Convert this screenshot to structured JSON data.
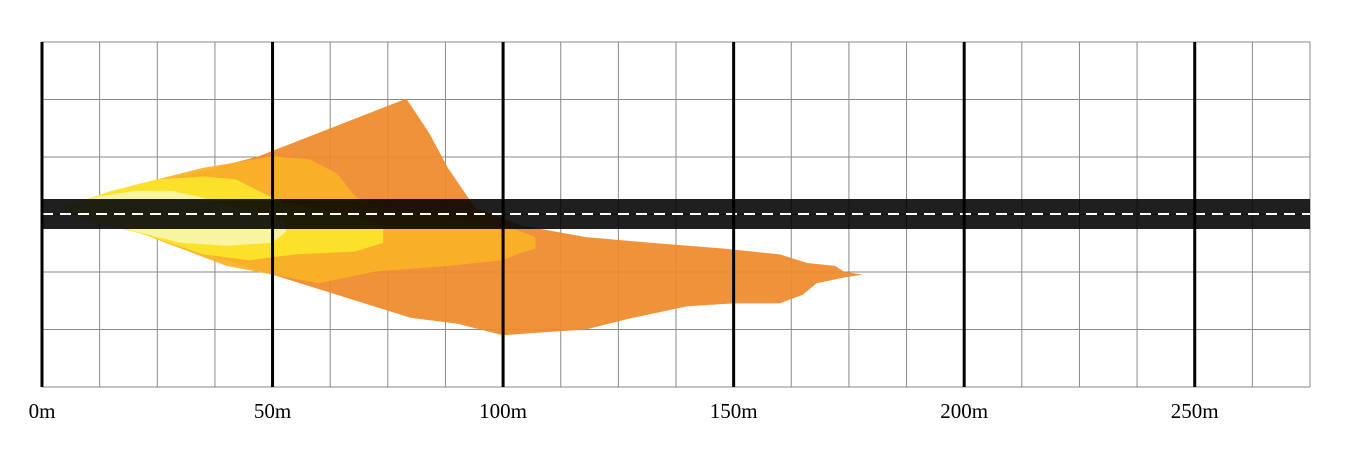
{
  "chart_data": {
    "type": "diagram",
    "x_axis": {
      "unit": "m",
      "min": 0,
      "max": 275,
      "minor_step": 12.5,
      "major_step": 50,
      "ticks": [
        {
          "value": 0,
          "label": "0m"
        },
        {
          "value": 50,
          "label": "50m"
        },
        {
          "value": 100,
          "label": "100m"
        },
        {
          "value": 150,
          "label": "150m"
        },
        {
          "value": 200,
          "label": "200m"
        },
        {
          "value": 250,
          "label": "250m"
        }
      ]
    },
    "grid": {
      "rows": 6,
      "minor_lines": true
    },
    "road": {
      "color": "#000000",
      "center_line_color": "#ffffff",
      "center_line_style": "dashed"
    },
    "zones": [
      {
        "level": 1,
        "color": "#ef8a2a",
        "outline": [
          [
            4,
            -1
          ],
          [
            47,
            -10
          ],
          [
            79,
            -20
          ],
          [
            84,
            -14
          ],
          [
            88,
            -8
          ],
          [
            94,
            -1
          ],
          [
            104,
            2
          ],
          [
            118,
            4
          ],
          [
            132,
            5
          ],
          [
            148,
            6
          ],
          [
            160,
            7
          ],
          [
            166,
            8.5
          ],
          [
            172,
            9
          ],
          [
            174,
            10
          ],
          [
            178,
            10.5
          ],
          [
            174,
            11
          ],
          [
            168,
            12
          ],
          [
            165,
            14
          ],
          [
            160,
            15.5
          ],
          [
            150,
            15.5
          ],
          [
            140,
            16
          ],
          [
            128,
            18
          ],
          [
            118,
            20
          ],
          [
            100,
            21
          ],
          [
            90,
            19
          ],
          [
            80,
            18
          ],
          [
            40,
            8
          ],
          [
            20,
            3
          ],
          [
            10,
            1
          ]
        ]
      },
      {
        "level": 2,
        "color": "#fab126",
        "outline": [
          [
            4,
            -1
          ],
          [
            20,
            -5
          ],
          [
            35,
            -8
          ],
          [
            50,
            -10
          ],
          [
            58,
            -9.5
          ],
          [
            64,
            -7
          ],
          [
            68,
            -3
          ],
          [
            74,
            -1
          ],
          [
            85,
            0
          ],
          [
            95,
            1.5
          ],
          [
            102,
            2.5
          ],
          [
            107,
            4
          ],
          [
            107,
            6
          ],
          [
            103,
            7
          ],
          [
            100,
            8
          ],
          [
            88,
            9
          ],
          [
            72,
            10
          ],
          [
            60,
            12
          ],
          [
            40,
            9
          ],
          [
            22,
            3.5
          ],
          [
            10,
            1
          ]
        ]
      },
      {
        "level": 3,
        "color": "#fbe52a",
        "outline": [
          [
            4,
            -1
          ],
          [
            15,
            -4
          ],
          [
            25,
            -6
          ],
          [
            35,
            -6.5
          ],
          [
            42,
            -6
          ],
          [
            47,
            -4
          ],
          [
            52,
            -2
          ],
          [
            62,
            -0.5
          ],
          [
            70,
            1
          ],
          [
            74,
            2
          ],
          [
            74,
            5
          ],
          [
            68,
            6.5
          ],
          [
            55,
            7
          ],
          [
            45,
            8
          ],
          [
            35,
            7
          ],
          [
            22,
            3.5
          ],
          [
            10,
            1
          ]
        ]
      },
      {
        "level": 4,
        "color": "#f7f5a8",
        "outline": [
          [
            4,
            -1
          ],
          [
            12,
            -3
          ],
          [
            20,
            -4
          ],
          [
            28,
            -4
          ],
          [
            34,
            -3
          ],
          [
            40,
            -1.5
          ],
          [
            48,
            0
          ],
          [
            52,
            1
          ],
          [
            53,
            3
          ],
          [
            50,
            5
          ],
          [
            40,
            5.5
          ],
          [
            30,
            5
          ],
          [
            20,
            3
          ],
          [
            10,
            1
          ]
        ]
      }
    ]
  }
}
